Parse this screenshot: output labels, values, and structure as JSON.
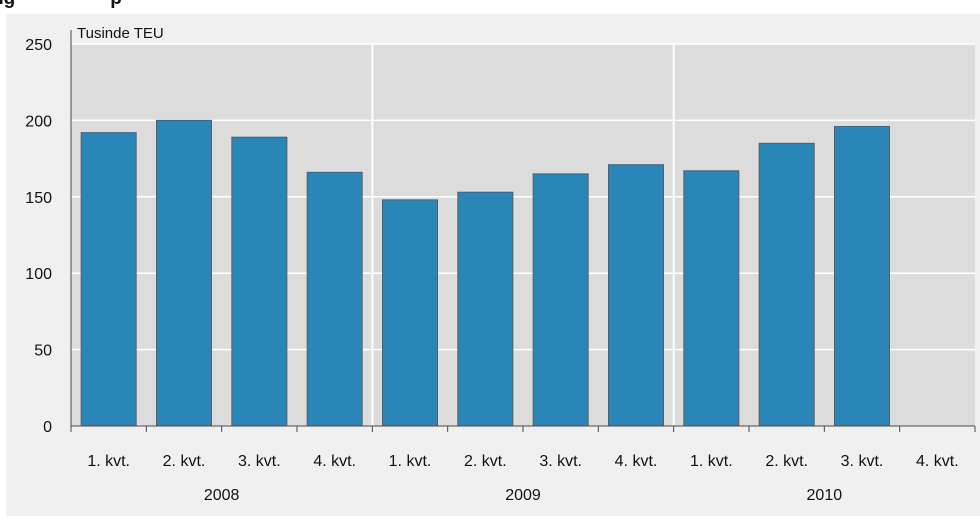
{
  "header": {
    "partial_title": "ng                  p"
  },
  "colors": {
    "outer_background": "#f0f0f0",
    "plot_background": "#dcdcdc",
    "gridline": "#ffffff",
    "bar_fill": "#2a86b9",
    "bar_stroke": "#5c5c5c",
    "axis_line": "#4a4a4a",
    "text": "#111111"
  },
  "chart_data": {
    "type": "bar",
    "ylabel": "Tusinde TEU",
    "ylim": [
      0,
      250
    ],
    "yticks": [
      0,
      50,
      100,
      150,
      200,
      250
    ],
    "grid": true,
    "categories": [
      "1. kvt.",
      "2. kvt.",
      "3. kvt.",
      "4. kvt.",
      "1. kvt.",
      "2. kvt.",
      "3. kvt.",
      "4. kvt.",
      "1. kvt.",
      "2. kvt.",
      "3. kvt.",
      "4. kvt."
    ],
    "groups": [
      {
        "label": "2008",
        "start": 0,
        "end": 3
      },
      {
        "label": "2009",
        "start": 4,
        "end": 7
      },
      {
        "label": "2010",
        "start": 8,
        "end": 11
      }
    ],
    "values": [
      192,
      200,
      189,
      166,
      148,
      153,
      165,
      171,
      167,
      185,
      196,
      null
    ]
  }
}
